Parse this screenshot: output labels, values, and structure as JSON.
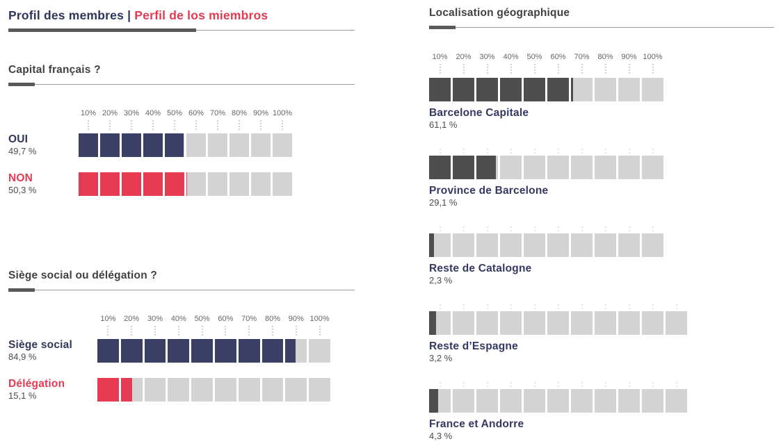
{
  "colors": {
    "navy": "#3a3f63",
    "red": "#e63c53",
    "dark": "#4e4e4e",
    "empty": "#d3d3d3",
    "text_navy": "#30365a",
    "text_red": "#e23b52",
    "heading_gray": "#414141",
    "value_gray": "#4d4d4d"
  },
  "header": {
    "title_fr": "Profil des membres",
    "separator": "|",
    "title_es": "Perfil de los miembros"
  },
  "axis_labels": [
    "10%",
    "20%",
    "30%",
    "40%",
    "50%",
    "60%",
    "70%",
    "80%",
    "90%",
    "100%"
  ],
  "left_sections": [
    {
      "heading": "Capital français ?",
      "rows": [
        {
          "label": "OUI",
          "value_text": "49,7 %",
          "value": 49.7,
          "color": "navy",
          "label_color": "text_navy",
          "segments": 10
        },
        {
          "label": "NON",
          "value_text": "50,3 %",
          "value": 50.3,
          "color": "red",
          "label_color": "text_red",
          "segments": 10
        }
      ]
    },
    {
      "heading": "Siège social ou délégation ?",
      "rows": [
        {
          "label": "Siège social",
          "value_text": "84,9 %",
          "value": 84.9,
          "color": "navy",
          "label_color": "text_navy",
          "segments": 10
        },
        {
          "label": "Délégation",
          "value_text": "15,1 %",
          "value": 15.1,
          "color": "red",
          "label_color": "text_red",
          "segments": 10
        }
      ]
    }
  ],
  "right_section": {
    "heading": "Localisation géographique",
    "rows": [
      {
        "label": "Barcelone Capitale",
        "value_text": "61,1 %",
        "value": 61.1,
        "color": "dark",
        "segments": 10
      },
      {
        "label": "Province de Barcelone",
        "value_text": "29,1 %",
        "value": 29.1,
        "color": "dark",
        "segments": 10
      },
      {
        "label": "Reste de Catalogne",
        "value_text": "2,3 %",
        "value": 2.3,
        "color": "dark",
        "segments": 10
      },
      {
        "label": "Reste d’Espagne",
        "value_text": "3,2 %",
        "value": 3.2,
        "color": "dark",
        "segments": 11
      },
      {
        "label": "France et Andorre",
        "value_text": "4,3 %",
        "value": 4.3,
        "color": "dark",
        "segments": 11
      }
    ]
  },
  "chart_data": [
    {
      "type": "bar",
      "orientation": "horizontal",
      "title": "Capital français ?",
      "group_title": "Profil des membres | Perfil de los miembros",
      "categories": [
        "OUI",
        "NON"
      ],
      "values": [
        49.7,
        50.3
      ],
      "unit": "%",
      "xlim": [
        0,
        100
      ],
      "axis_ticks": [
        "10%",
        "20%",
        "30%",
        "40%",
        "50%",
        "60%",
        "70%",
        "80%",
        "90%",
        "100%"
      ],
      "colors": [
        "#3a3f63",
        "#e63c53"
      ],
      "style": "10 stacked unit squares per bar, empty units light gray"
    },
    {
      "type": "bar",
      "orientation": "horizontal",
      "title": "Siège social ou délégation ?",
      "group_title": "Profil des membres | Perfil de los miembros",
      "categories": [
        "Siège social",
        "Délégation"
      ],
      "values": [
        84.9,
        15.1
      ],
      "unit": "%",
      "xlim": [
        0,
        100
      ],
      "axis_ticks": [
        "10%",
        "20%",
        "30%",
        "40%",
        "50%",
        "60%",
        "70%",
        "80%",
        "90%",
        "100%"
      ],
      "colors": [
        "#3a3f63",
        "#e63c53"
      ],
      "style": "10 stacked unit squares per bar, empty units light gray"
    },
    {
      "type": "bar",
      "orientation": "horizontal",
      "title": "Localisation géographique",
      "categories": [
        "Barcelone Capitale",
        "Province de Barcelone",
        "Reste de Catalogne",
        "Reste d’Espagne",
        "France et Andorre"
      ],
      "values": [
        61.1,
        29.1,
        2.3,
        3.2,
        4.3
      ],
      "unit": "%",
      "xlim": [
        0,
        100
      ],
      "axis_ticks": [
        "10%",
        "20%",
        "30%",
        "40%",
        "50%",
        "60%",
        "70%",
        "80%",
        "90%",
        "100%"
      ],
      "colors": [
        "#4e4e4e"
      ],
      "style": "unit squares per bar (last two rows drawn with 11 squares), empty units light gray, labels below bars"
    }
  ]
}
